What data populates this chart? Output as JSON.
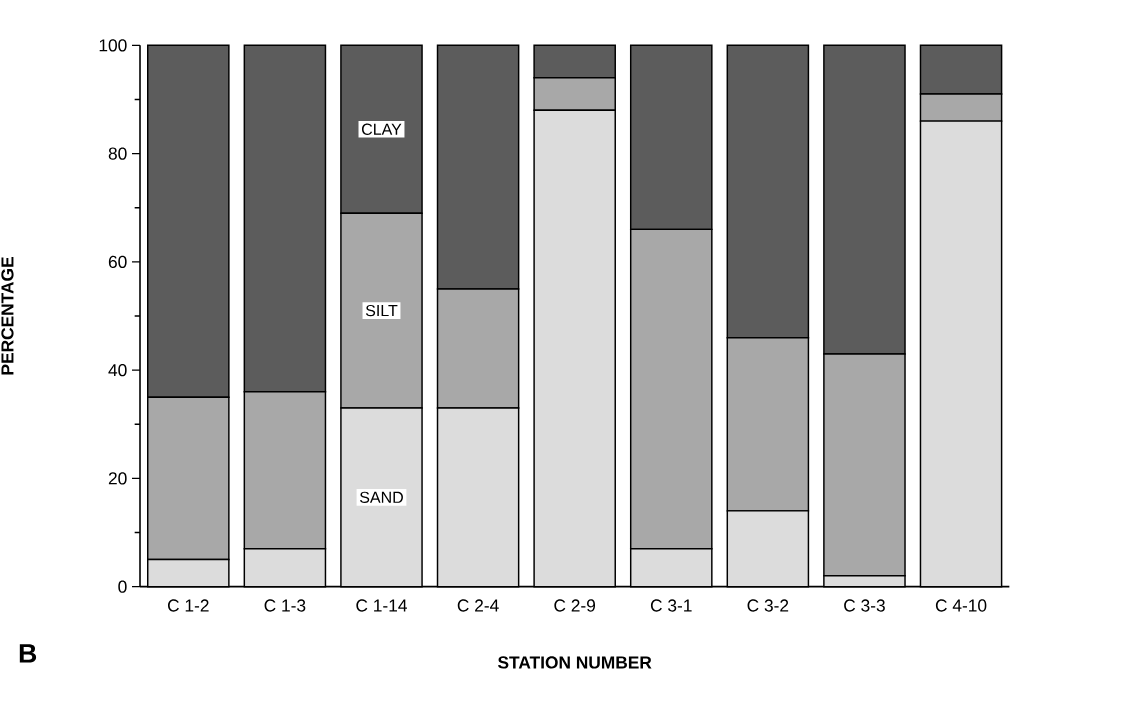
{
  "chart_data": {
    "type": "bar",
    "stacked": true,
    "xlabel": "STATION NUMBER",
    "ylabel": "PERCENTAGE",
    "annotations": [
      "B"
    ],
    "categories": [
      "C 1-2",
      "C 1-3",
      "C 1-14",
      "C 2-4",
      "C 2-9",
      "C 3-1",
      "C 3-2",
      "C 3-3",
      "C 4-10"
    ],
    "series": [
      {
        "name": "SAND",
        "color": "#dcdcdc",
        "values": [
          5,
          7,
          33,
          33,
          88,
          7,
          14,
          2,
          86
        ]
      },
      {
        "name": "SILT",
        "color": "#a8a8a8",
        "values": [
          30,
          29,
          36,
          22,
          6,
          59,
          32,
          41,
          5
        ]
      },
      {
        "name": "CLAY",
        "color": "#5c5c5c",
        "values": [
          65,
          64,
          31,
          45,
          6,
          34,
          54,
          57,
          9
        ]
      }
    ],
    "ylim": [
      0,
      100
    ],
    "yticks": [
      0,
      20,
      40,
      60,
      80,
      100
    ],
    "grid": false,
    "legend": false
  }
}
